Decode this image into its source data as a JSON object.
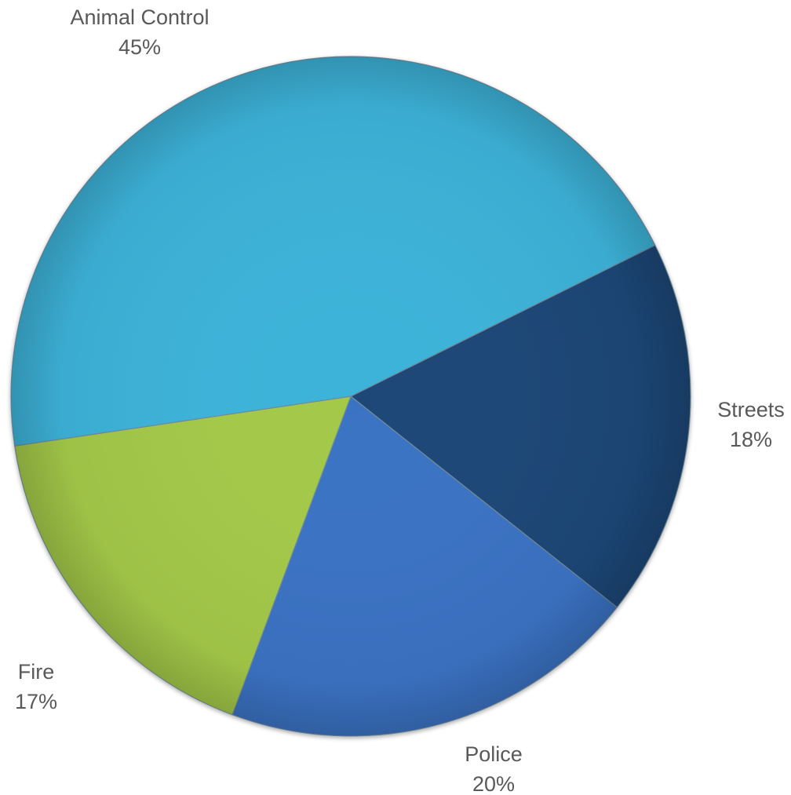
{
  "chart_data": {
    "type": "pie",
    "title": "",
    "slices": [
      {
        "label": "Animal Control",
        "value": 45,
        "display": "45%",
        "color": "#3DB3D9"
      },
      {
        "label": "Streets",
        "value": 18,
        "display": "18%",
        "color": "#1F4677"
      },
      {
        "label": "Police",
        "value": 20,
        "display": "20%",
        "color": "#3B73C4"
      },
      {
        "label": "Fire",
        "value": 17,
        "display": "17%",
        "color": "#A4C94A"
      }
    ],
    "legend": "none",
    "data_labels": "outside"
  }
}
